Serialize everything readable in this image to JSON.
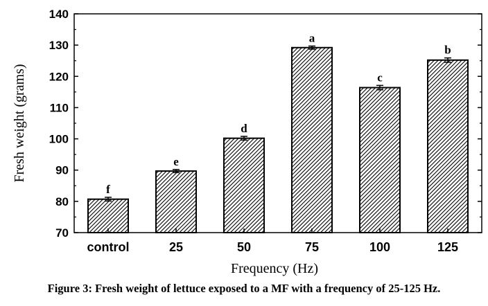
{
  "chart_data": {
    "type": "bar",
    "categories": [
      "control",
      "25",
      "50",
      "75",
      "100",
      "125"
    ],
    "values": [
      80.7,
      89.7,
      100.2,
      129.2,
      116.4,
      125.2
    ],
    "errors": [
      0.6,
      0.5,
      0.6,
      0.5,
      0.7,
      0.7
    ],
    "significance_labels": [
      "f",
      "e",
      "d",
      "a",
      "c",
      "b"
    ],
    "xlabel": "Frequency (Hz)",
    "ylabel": "Fresh weight (grams)",
    "ylim": [
      70,
      140
    ],
    "yticks": [
      70,
      80,
      90,
      100,
      110,
      120,
      130,
      140
    ],
    "bar_pattern": "diagonal-hatch",
    "bar_color": "#000000",
    "grid": false
  },
  "caption": "Figure 3: Fresh weight of lettuce exposed to a MF with a frequency of 25-125 Hz."
}
